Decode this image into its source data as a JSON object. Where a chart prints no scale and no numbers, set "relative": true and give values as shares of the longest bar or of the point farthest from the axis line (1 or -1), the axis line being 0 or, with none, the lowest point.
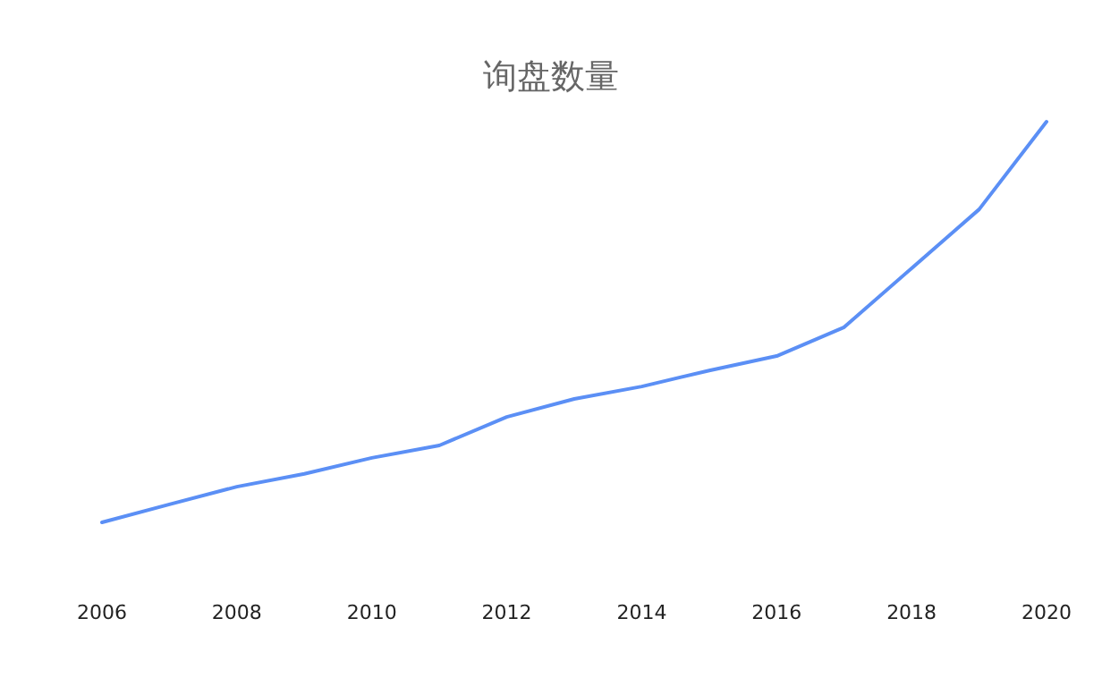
{
  "chart_data": {
    "type": "line",
    "title": "询盘数量",
    "relative": true,
    "x": [
      2006,
      2007,
      2008,
      2009,
      2010,
      2011,
      2012,
      2013,
      2014,
      2015,
      2016,
      2017,
      2018,
      2019,
      2020
    ],
    "xlim": [
      2006,
      2020
    ],
    "xticks": [
      2006,
      2008,
      2010,
      2012,
      2014,
      2016,
      2018,
      2020
    ],
    "series": [
      {
        "color": "#5b8ff5",
        "values": [
          0,
          0.045,
          0.089,
          0.121,
          0.161,
          0.192,
          0.263,
          0.308,
          0.339,
          0.379,
          0.415,
          0.487,
          0.634,
          0.781,
          1
        ]
      }
    ],
    "marker": "none",
    "line_style": "solid"
  }
}
